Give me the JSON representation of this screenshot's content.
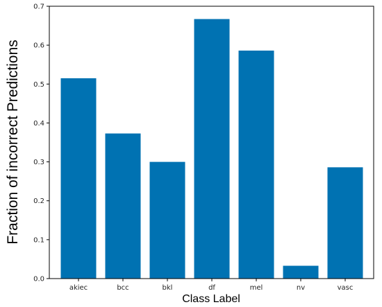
{
  "chart_data": {
    "type": "bar",
    "title": "",
    "xlabel": "Class Label",
    "ylabel": "Fraction of incorrect Predictions",
    "categories": [
      "akiec",
      "bcc",
      "bkl",
      "df",
      "mel",
      "nv",
      "vasc"
    ],
    "values": [
      0.515,
      0.373,
      0.3,
      0.667,
      0.586,
      0.033,
      0.286
    ],
    "ylim": [
      0,
      0.7
    ],
    "yticks": [
      "0.0",
      "0.1",
      "0.2",
      "0.3",
      "0.4",
      "0.5",
      "0.6",
      "0.7"
    ],
    "grid": false,
    "legend": "none",
    "bar_color": "#0072b2"
  }
}
